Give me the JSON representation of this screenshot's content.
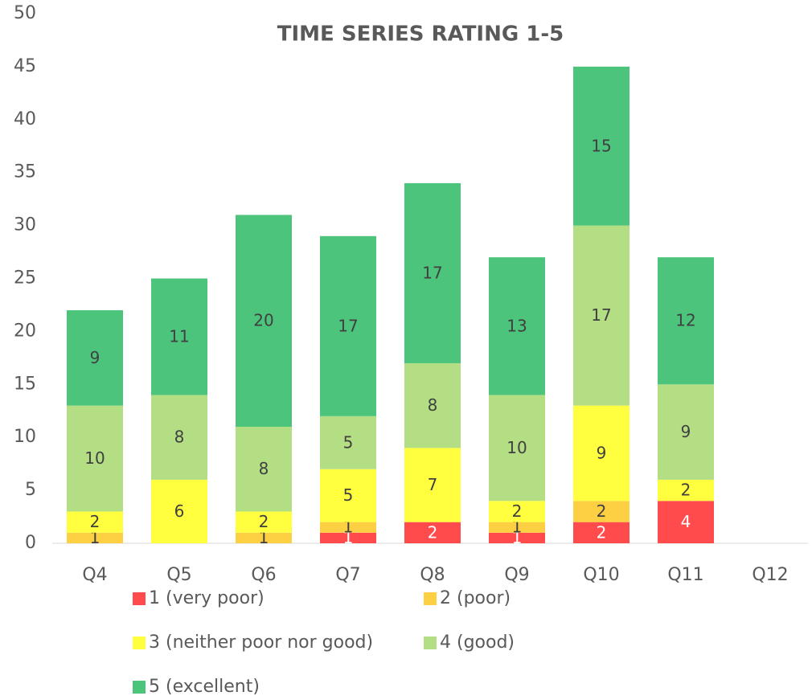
{
  "chart_data": {
    "type": "bar",
    "stacked": true,
    "title": "TIME SERIES RATING 1-5",
    "categories": [
      "Q4",
      "Q5",
      "Q6",
      "Q7",
      "Q8",
      "Q9",
      "Q10",
      "Q11",
      "Q12"
    ],
    "series": [
      {
        "name": "1 (very poor)",
        "color": "#ff4b4b",
        "values": [
          null,
          null,
          null,
          1,
          2,
          1,
          2,
          4,
          null
        ]
      },
      {
        "name": "2 (poor)",
        "color": "#fdcf42",
        "values": [
          1,
          null,
          1,
          1,
          null,
          1,
          2,
          null,
          null
        ]
      },
      {
        "name": "3 (neither poor nor good)",
        "color": "#ffff3f",
        "values": [
          2,
          6,
          2,
          5,
          7,
          2,
          9,
          2,
          null
        ]
      },
      {
        "name": "4 (good)",
        "color": "#b3de83",
        "values": [
          10,
          8,
          8,
          5,
          8,
          10,
          17,
          9,
          null
        ]
      },
      {
        "name": "5 (excellent)",
        "color": "#4cc47c",
        "values": [
          9,
          11,
          20,
          17,
          17,
          13,
          15,
          12,
          null
        ]
      }
    ],
    "ylim": [
      0,
      50
    ],
    "yticks": [
      0,
      5,
      10,
      15,
      20,
      25,
      30,
      35,
      40,
      45,
      50
    ],
    "grid": false
  }
}
